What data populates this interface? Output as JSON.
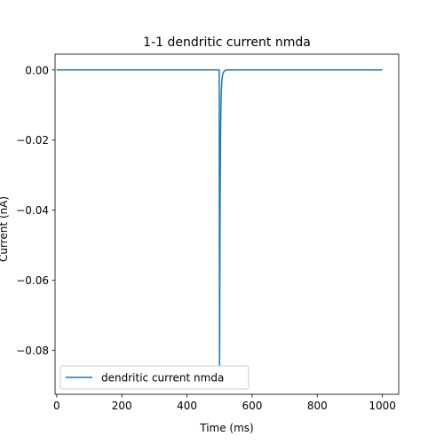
{
  "chart_data": {
    "type": "line",
    "title": "1-1 dendritic current nmda",
    "xlabel": "Time (ms)",
    "ylabel": "Current (nA)",
    "xlim": [
      -5,
      1050
    ],
    "ylim": [
      -0.0925,
      0.0045
    ],
    "x_ticks": [
      0,
      200,
      400,
      600,
      800,
      1000
    ],
    "x_tick_labels": [
      "0",
      "200",
      "400",
      "600",
      "800",
      "1000"
    ],
    "y_ticks": [
      0.0,
      -0.02,
      -0.04,
      -0.06,
      -0.08
    ],
    "y_tick_labels": [
      "0.00",
      "−0.02",
      "−0.04",
      "−0.06",
      "−0.08"
    ],
    "grid": false,
    "legend_position": "lower-left",
    "series": [
      {
        "name": "dendritic current nmda",
        "color": "#1f77b4",
        "x": [
          0,
          100,
          200,
          300,
          400,
          499,
          499.5,
          500,
          500.5,
          501,
          501.5,
          502,
          503,
          504,
          505,
          507,
          510,
          515,
          520,
          600,
          700,
          800,
          900,
          1000
        ],
        "y": [
          0,
          0,
          0,
          0,
          0,
          0,
          -0.05,
          -0.0845,
          -0.075,
          -0.06,
          -0.045,
          -0.034,
          -0.02,
          -0.012,
          -0.007,
          -0.003,
          -0.001,
          -0.0003,
          0,
          0,
          0,
          0,
          0,
          0
        ]
      }
    ]
  }
}
